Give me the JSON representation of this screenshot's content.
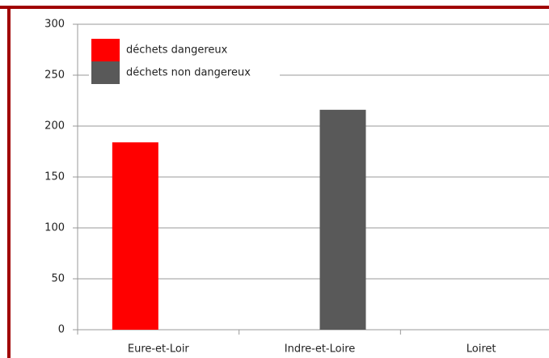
{
  "chart_data": {
    "type": "bar",
    "categories": [
      "Eure-et-Loir",
      "Indre-et-Loire",
      "Loiret"
    ],
    "series": [
      {
        "name": "déchets dangereux",
        "color": "#ff0000",
        "values": [
          184,
          0,
          0
        ]
      },
      {
        "name": "déchets non dangereux",
        "color": "#595959",
        "values": [
          0,
          216,
          0
        ]
      }
    ],
    "ylim": [
      0,
      300
    ],
    "yticks": [
      0,
      50,
      100,
      150,
      200,
      250,
      300
    ],
    "grid": true,
    "legend": "top-left"
  }
}
